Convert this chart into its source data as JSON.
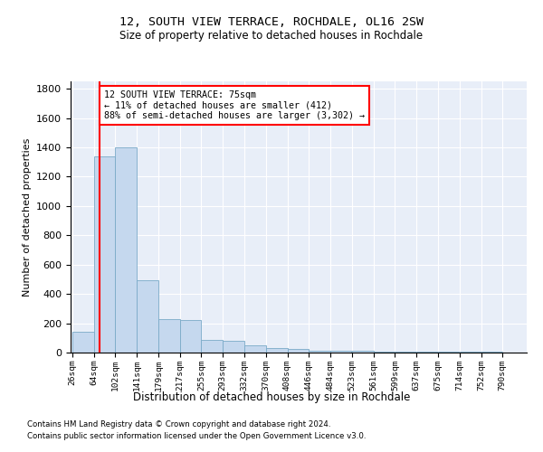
{
  "title1": "12, SOUTH VIEW TERRACE, ROCHDALE, OL16 2SW",
  "title2": "Size of property relative to detached houses in Rochdale",
  "xlabel": "Distribution of detached houses by size in Rochdale",
  "ylabel": "Number of detached properties",
  "bin_edges": [
    26,
    64,
    102,
    141,
    179,
    217,
    255,
    293,
    332,
    370,
    408,
    446,
    484,
    523,
    561,
    599,
    637,
    675,
    714,
    752,
    790
  ],
  "bar_heights": [
    140,
    1340,
    1400,
    495,
    230,
    225,
    85,
    80,
    50,
    30,
    25,
    15,
    15,
    10,
    8,
    5,
    5,
    5,
    5,
    5
  ],
  "bar_color": "#c5d8ee",
  "bar_edge_color": "#7aaac8",
  "background_color": "#e8eef8",
  "red_line_x": 75,
  "annotation_text": "12 SOUTH VIEW TERRACE: 75sqm\n← 11% of detached houses are smaller (412)\n88% of semi-detached houses are larger (3,302) →",
  "annotation_box_color": "white",
  "annotation_box_edge_color": "red",
  "ylim": [
    0,
    1850
  ],
  "yticks": [
    0,
    200,
    400,
    600,
    800,
    1000,
    1200,
    1400,
    1600,
    1800
  ],
  "footer1": "Contains HM Land Registry data © Crown copyright and database right 2024.",
  "footer2": "Contains public sector information licensed under the Open Government Licence v3.0."
}
